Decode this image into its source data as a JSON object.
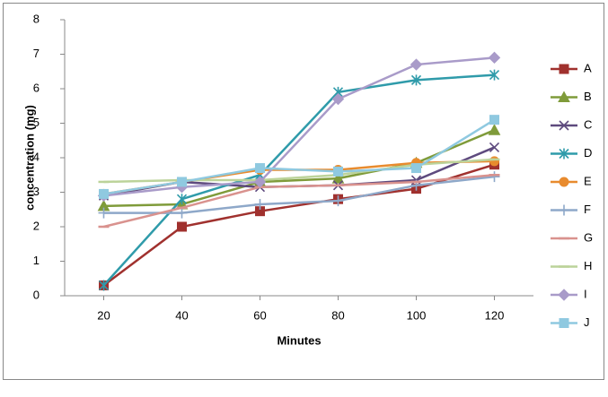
{
  "chart_data": {
    "type": "line",
    "x_label": "Minutes",
    "y_label": "concentration (mg)",
    "x": [
      20,
      40,
      60,
      80,
      100,
      120
    ],
    "xlim": [
      10,
      130
    ],
    "xticks": [
      20,
      40,
      60,
      80,
      100,
      120
    ],
    "ylim": [
      0,
      8
    ],
    "yticks": [
      0,
      1,
      2,
      3,
      4,
      5,
      6,
      7,
      8
    ],
    "grid": false,
    "legend": "right",
    "series": [
      {
        "name": "A",
        "color": "#a0312e",
        "marker": "square",
        "values": [
          0.3,
          2.0,
          2.45,
          2.8,
          3.1,
          3.8
        ]
      },
      {
        "name": "B",
        "color": "#7f9b3a",
        "marker": "triangle",
        "values": [
          2.6,
          2.65,
          3.3,
          3.4,
          3.85,
          4.8
        ]
      },
      {
        "name": "C",
        "color": "#5e4a7e",
        "marker": "x",
        "values": [
          2.9,
          3.3,
          3.15,
          3.2,
          3.35,
          4.3
        ]
      },
      {
        "name": "D",
        "color": "#2f9baa",
        "marker": "asterisk",
        "values": [
          0.3,
          2.8,
          3.5,
          5.9,
          6.25,
          6.4
        ]
      },
      {
        "name": "E",
        "color": "#e88b2e",
        "marker": "circle",
        "values": [
          2.95,
          3.3,
          3.65,
          3.65,
          3.85,
          3.9
        ]
      },
      {
        "name": "F",
        "color": "#8ea8c9",
        "marker": "plus",
        "values": [
          2.4,
          2.4,
          2.65,
          2.75,
          3.2,
          3.45
        ]
      },
      {
        "name": "G",
        "color": "#d9928e",
        "marker": "dash",
        "values": [
          2.0,
          2.55,
          3.15,
          3.2,
          3.3,
          3.5
        ]
      },
      {
        "name": "H",
        "color": "#bcd39a",
        "marker": "dash",
        "values": [
          3.3,
          3.35,
          3.35,
          3.5,
          3.8,
          3.95
        ]
      },
      {
        "name": "I",
        "color": "#a99bc9",
        "marker": "diamond",
        "values": [
          2.9,
          3.15,
          3.3,
          5.7,
          6.7,
          6.9
        ]
      },
      {
        "name": "J",
        "color": "#8fc9e0",
        "marker": "square",
        "values": [
          2.95,
          3.3,
          3.7,
          3.6,
          3.7,
          5.1
        ]
      }
    ]
  }
}
